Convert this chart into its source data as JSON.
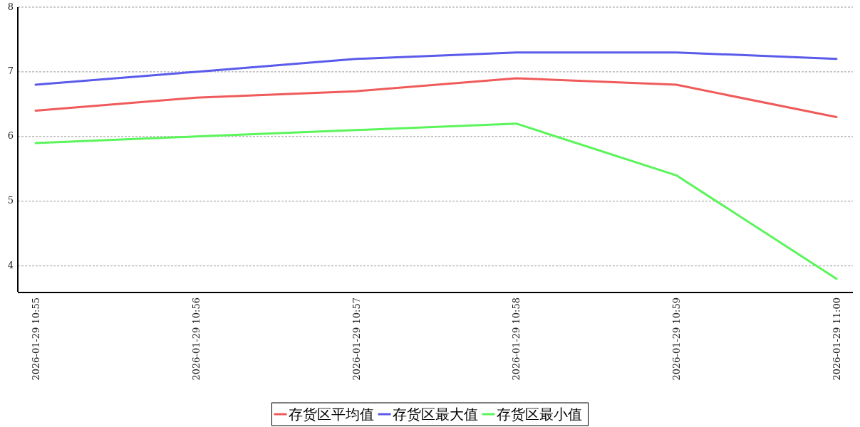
{
  "chart_data": {
    "type": "line",
    "categories": [
      "2026-01-29 10:55",
      "2026-01-29 10:56",
      "2026-01-29 10:57",
      "2026-01-29 10:58",
      "2026-01-29 10:59",
      "2026-01-29 11:00"
    ],
    "series": [
      {
        "name": "存货区平均值",
        "color": "#f05a5a",
        "values": [
          6.4,
          6.6,
          6.7,
          6.9,
          6.8,
          6.3
        ]
      },
      {
        "name": "存货区最大值",
        "color": "#5a5aeb",
        "values": [
          6.8,
          7.0,
          7.2,
          7.3,
          7.3,
          7.2
        ]
      },
      {
        "name": "存货区最小值",
        "color": "#5af55a",
        "values": [
          5.9,
          6.0,
          6.1,
          6.2,
          5.4,
          3.8
        ]
      }
    ],
    "ylim": [
      3.6,
      8
    ],
    "yticks": [
      4,
      5,
      6,
      7,
      8
    ],
    "grid": "y",
    "legend": "bottom",
    "marker": "none",
    "line_style": "solid"
  }
}
